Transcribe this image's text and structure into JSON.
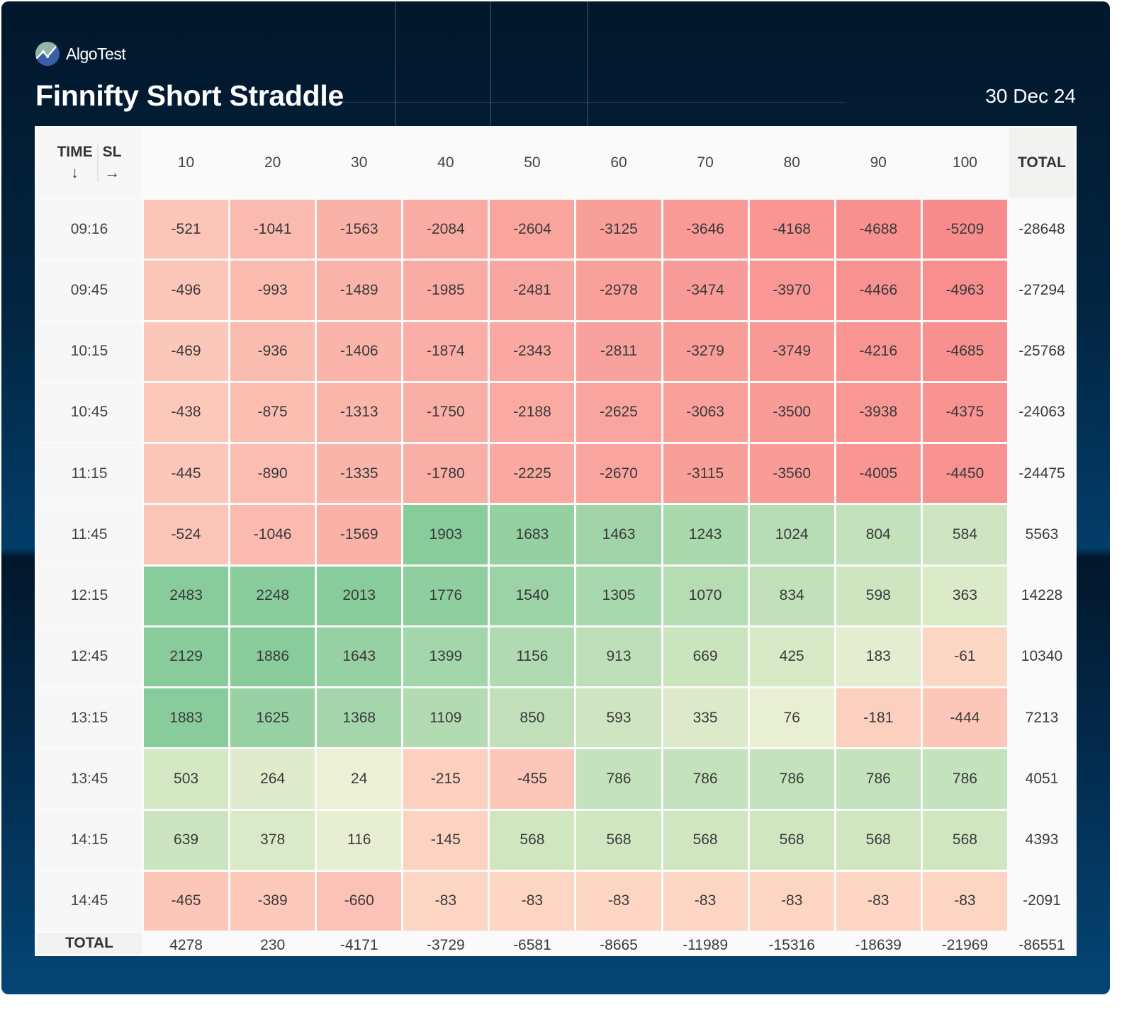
{
  "brand": {
    "name": "AlgoTest",
    "logo_icon": "chart-line-globe-icon"
  },
  "header": {
    "title": "Finnifty Short Straddle",
    "date": "30 Dec 24"
  },
  "table": {
    "corner": {
      "row_label": "TIME",
      "row_arrow": "↓",
      "col_label": "SL",
      "col_arrow": "→"
    },
    "total_label": "TOTAL"
  },
  "colors": {
    "negative_max": "#f88c8c",
    "negative_min": "#fde0cb",
    "neutral": "#edf0d6",
    "positive_min": "#d9e9c6",
    "positive_max": "#88cc9c",
    "background_dark": "#02172b",
    "background_blue": "#044676"
  },
  "chart_data": {
    "type": "heatmap",
    "title": "Finnifty Short Straddle",
    "subtitle": "30 Dec 24",
    "xlabel": "SL",
    "ylabel": "TIME",
    "x": [
      "10",
      "20",
      "30",
      "40",
      "50",
      "60",
      "70",
      "80",
      "90",
      "100"
    ],
    "y": [
      "09:16",
      "09:45",
      "10:15",
      "10:45",
      "11:15",
      "11:45",
      "12:15",
      "12:45",
      "13:15",
      "13:45",
      "14:15",
      "14:45"
    ],
    "values": [
      [
        -521,
        -1041,
        -1563,
        -2084,
        -2604,
        -3125,
        -3646,
        -4168,
        -4688,
        -5209
      ],
      [
        -496,
        -993,
        -1489,
        -1985,
        -2481,
        -2978,
        -3474,
        -3970,
        -4466,
        -4963
      ],
      [
        -469,
        -936,
        -1406,
        -1874,
        -2343,
        -2811,
        -3279,
        -3749,
        -4216,
        -4685
      ],
      [
        -438,
        -875,
        -1313,
        -1750,
        -2188,
        -2625,
        -3063,
        -3500,
        -3938,
        -4375
      ],
      [
        -445,
        -890,
        -1335,
        -1780,
        -2225,
        -2670,
        -3115,
        -3560,
        -4005,
        -4450
      ],
      [
        -524,
        -1046,
        -1569,
        1903,
        1683,
        1463,
        1243,
        1024,
        804,
        584
      ],
      [
        2483,
        2248,
        2013,
        1776,
        1540,
        1305,
        1070,
        834,
        598,
        363
      ],
      [
        2129,
        1886,
        1643,
        1399,
        1156,
        913,
        669,
        425,
        183,
        -61
      ],
      [
        1883,
        1625,
        1368,
        1109,
        850,
        593,
        335,
        76,
        -181,
        -444
      ],
      [
        503,
        264,
        24,
        -215,
        -455,
        786,
        786,
        786,
        786,
        786
      ],
      [
        639,
        378,
        116,
        -145,
        568,
        568,
        568,
        568,
        568,
        568
      ],
      [
        -465,
        -389,
        -660,
        -83,
        -83,
        -83,
        -83,
        -83,
        -83,
        -83
      ]
    ],
    "row_totals": [
      -28648,
      -27294,
      -25768,
      -24063,
      -24475,
      5563,
      14228,
      10340,
      7213,
      4051,
      4393,
      -2091
    ],
    "col_totals": [
      4278,
      230,
      -4171,
      -3729,
      -6581,
      -8665,
      -11989,
      -15316,
      -18639,
      -21969
    ],
    "grand_total": -86551,
    "total_label": "TOTAL"
  }
}
